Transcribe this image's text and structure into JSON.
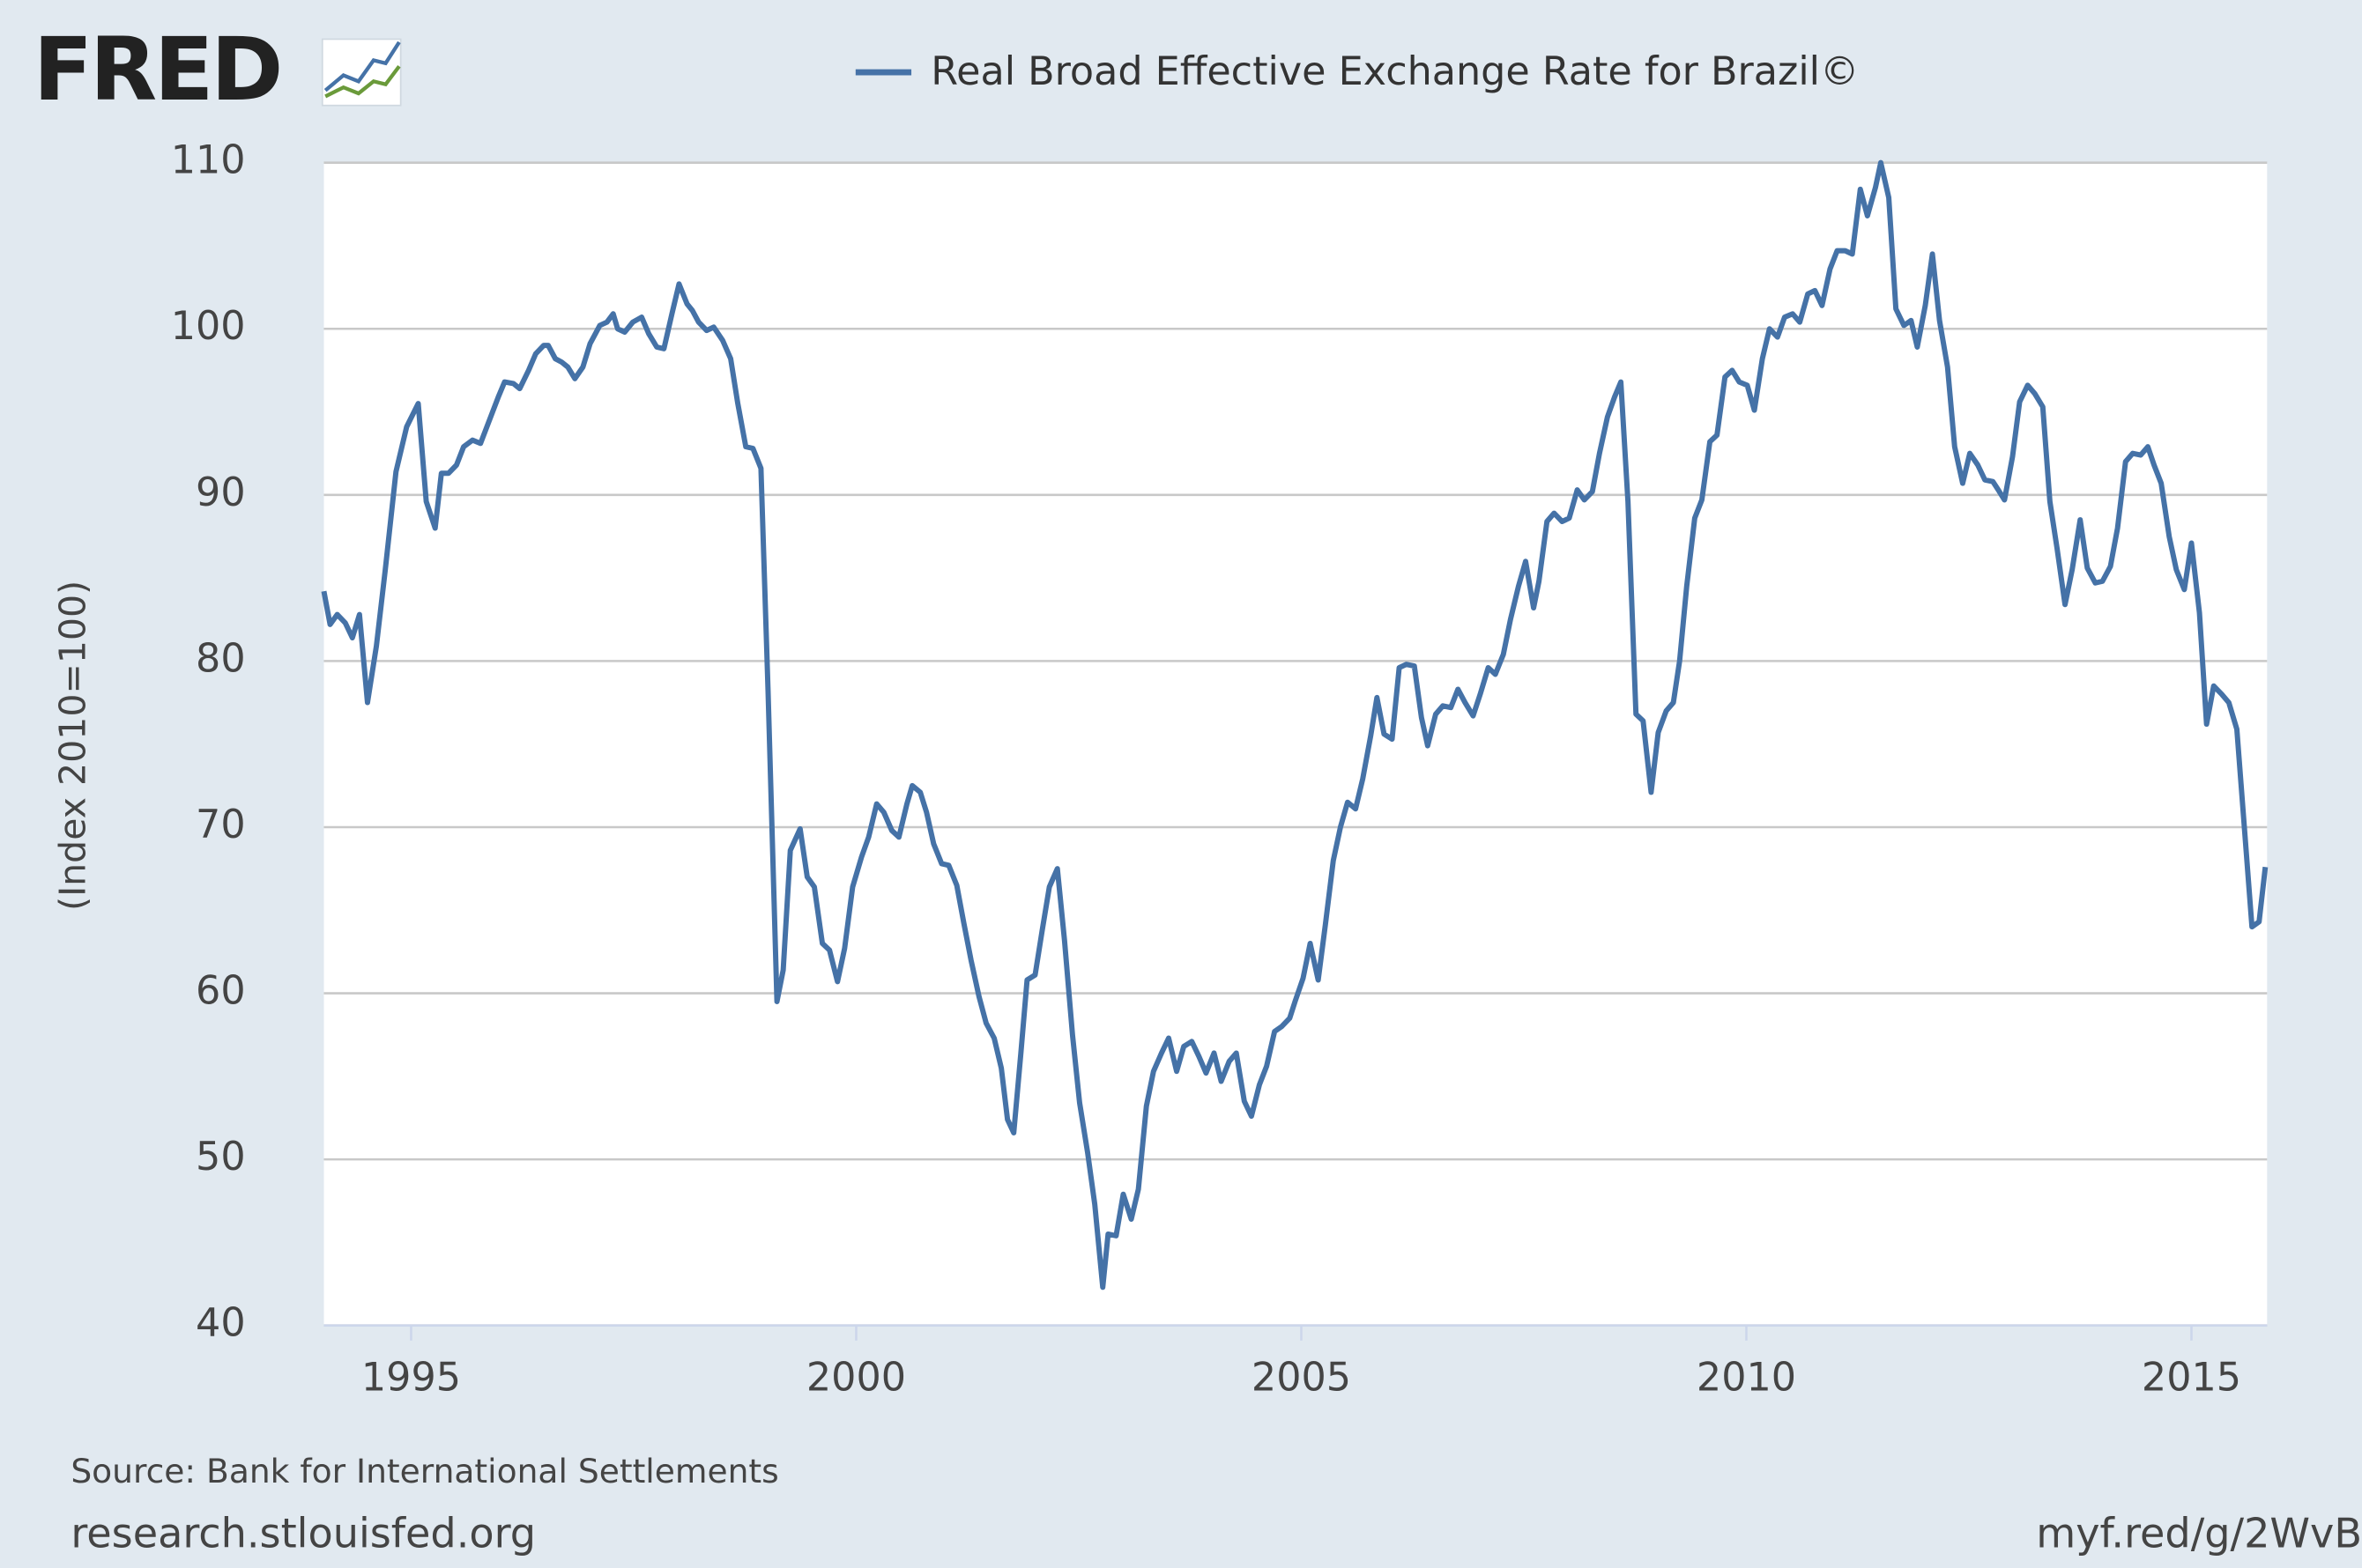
{
  "chart_data": {
    "type": "line",
    "logo": "FRED",
    "source": "Source: Bank for International Settlements",
    "site": "research.stlouisfed.org",
    "short_url": "myf.red/g/2WvB",
    "y_label": "(Index 2010=100)",
    "xlim": [
      1994.02,
      2015.85
    ],
    "xticks": [
      1995,
      2000,
      2005,
      2010,
      2015
    ],
    "ylim": [
      40,
      110
    ],
    "yticks": [
      40,
      50,
      60,
      70,
      80,
      90,
      100,
      110
    ],
    "grid": true,
    "x": [
      1994.02,
      1994.09,
      1994.17,
      1994.26,
      1994.34,
      1994.42,
      1994.51,
      1994.61,
      1994.71,
      1994.83,
      1994.95,
      1995.08,
      1995.17,
      1995.27,
      1995.34,
      1995.42,
      1995.51,
      1995.59,
      1995.69,
      1995.78,
      1995.88,
      1995.98,
      1996.05,
      1996.15,
      1996.22,
      1996.32,
      1996.4,
      1996.49,
      1996.54,
      1996.62,
      1996.69,
      1996.76,
      1996.84,
      1996.93,
      1997.01,
      1997.12,
      1997.2,
      1997.27,
      1997.32,
      1997.4,
      1997.49,
      1997.59,
      1997.67,
      1997.76,
      1997.84,
      1997.93,
      1998.01,
      1998.1,
      1998.16,
      1998.23,
      1998.32,
      1998.4,
      1998.5,
      1998.59,
      1998.67,
      1998.76,
      1998.84,
      1998.93,
      1999.01,
      1999.11,
      1999.18,
      1999.26,
      1999.37,
      1999.45,
      1999.53,
      1999.62,
      1999.7,
      1999.79,
      1999.87,
      1999.96,
      2000.06,
      2000.14,
      2000.23,
      2000.31,
      2000.4,
      2000.48,
      2000.57,
      2000.63,
      2000.72,
      2000.79,
      2000.87,
      2000.96,
      2001.04,
      2001.13,
      2001.21,
      2001.29,
      2001.38,
      2001.46,
      2001.55,
      2001.63,
      2001.7,
      2001.77,
      2001.85,
      2001.92,
      2002.01,
      2002.09,
      2002.17,
      2002.26,
      2002.34,
      2002.43,
      2002.51,
      2002.6,
      2002.68,
      2002.77,
      2002.83,
      2002.92,
      2003.0,
      2003.09,
      2003.17,
      2003.26,
      2003.34,
      2003.43,
      2003.51,
      2003.6,
      2003.68,
      2003.77,
      2003.85,
      2003.93,
      2004.02,
      2004.1,
      2004.19,
      2004.27,
      2004.36,
      2004.44,
      2004.53,
      2004.61,
      2004.7,
      2004.78,
      2004.87,
      2004.93,
      2005.02,
      2005.1,
      2005.19,
      2005.27,
      2005.36,
      2005.44,
      2005.52,
      2005.61,
      2005.69,
      2005.78,
      2005.85,
      2005.93,
      2006.02,
      2006.1,
      2006.18,
      2006.27,
      2006.35,
      2006.42,
      2006.51,
      2006.59,
      2006.68,
      2006.76,
      2006.84,
      2006.93,
      2007.01,
      2007.1,
      2007.18,
      2007.27,
      2007.35,
      2007.44,
      2007.52,
      2007.61,
      2007.67,
      2007.76,
      2007.84,
      2007.93,
      2008.01,
      2008.1,
      2008.18,
      2008.27,
      2008.35,
      2008.44,
      2008.52,
      2008.59,
      2008.67,
      2008.76,
      2008.84,
      2008.93,
      2009.01,
      2009.1,
      2009.18,
      2009.25,
      2009.33,
      2009.42,
      2009.5,
      2009.59,
      2009.67,
      2009.76,
      2009.84,
      2009.92,
      2010.01,
      2010.09,
      2010.18,
      2010.26,
      2010.35,
      2010.43,
      2010.52,
      2010.6,
      2010.69,
      2010.77,
      2010.85,
      2010.94,
      2011.02,
      2011.11,
      2011.19,
      2011.28,
      2011.36,
      2011.45,
      2011.51,
      2011.6,
      2011.68,
      2011.77,
      2011.85,
      2011.92,
      2012.01,
      2012.09,
      2012.17,
      2012.26,
      2012.34,
      2012.43,
      2012.51,
      2012.6,
      2012.68,
      2012.77,
      2012.83,
      2012.9,
      2012.99,
      2013.07,
      2013.16,
      2013.24,
      2013.33,
      2013.41,
      2013.49,
      2013.58,
      2013.66,
      2013.75,
      2013.83,
      2013.92,
      2014.0,
      2014.09,
      2014.17,
      2014.26,
      2014.34,
      2014.43,
      2014.51,
      2014.58,
      2014.66,
      2014.75,
      2014.83,
      2014.92,
      2015.0,
      2015.09,
      2015.17,
      2015.25,
      2015.34,
      2015.42,
      2015.51,
      2015.59,
      2015.68,
      2015.76,
      2015.83
    ],
    "series": [
      {
        "name": "Real Broad Effective Exchange Rate for Brazil©",
        "color": "#4572a7",
        "values": [
          84.2,
          82.2,
          82.8,
          82.3,
          81.4,
          82.8,
          77.5,
          80.9,
          85.5,
          91.4,
          94.1,
          95.5,
          89.6,
          88,
          91.3,
          91.3,
          91.8,
          92.9,
          93.3,
          93.1,
          94.5,
          95.9,
          96.8,
          96.7,
          96.4,
          97.5,
          98.5,
          99,
          99,
          98.2,
          98,
          97.7,
          97,
          97.7,
          99.1,
          100.2,
          100.4,
          100.9,
          100,
          99.8,
          100.4,
          100.7,
          99.7,
          98.9,
          98.8,
          100.9,
          102.7,
          101.5,
          101.1,
          100.4,
          99.9,
          100.1,
          99.3,
          98.2,
          95.5,
          92.9,
          92.8,
          91.6,
          78.2,
          59.5,
          61.4,
          68.6,
          69.9,
          67,
          66.4,
          63,
          62.6,
          60.7,
          62.7,
          66.4,
          68.2,
          69.4,
          71.4,
          70.9,
          69.8,
          69.4,
          71.4,
          72.5,
          72.1,
          70.9,
          69,
          67.8,
          67.7,
          66.5,
          64.2,
          62,
          59.8,
          58.2,
          57.3,
          55.5,
          52.4,
          51.6,
          56.4,
          60.8,
          61.1,
          63.8,
          66.4,
          67.5,
          63.2,
          57.5,
          53.4,
          50.4,
          47.3,
          42.3,
          45.5,
          45.4,
          47.9,
          46.4,
          48.2,
          53.2,
          55.3,
          56.4,
          57.3,
          55.3,
          56.8,
          57.1,
          56.2,
          55.2,
          56.4,
          54.7,
          55.9,
          56.4,
          53.5,
          52.6,
          54.5,
          55.6,
          57.7,
          58,
          58.5,
          59.5,
          60.9,
          63,
          60.8,
          64.1,
          68,
          70,
          71.5,
          71.1,
          72.9,
          75.5,
          77.8,
          75.6,
          75.3,
          79.6,
          79.8,
          79.7,
          76.6,
          74.9,
          76.8,
          77.3,
          77.2,
          78.3,
          77.5,
          76.7,
          78,
          79.6,
          79.2,
          80.4,
          82.5,
          84.5,
          86,
          83.2,
          84.8,
          88.4,
          88.9,
          88.4,
          88.6,
          90.3,
          89.7,
          90.2,
          92.5,
          94.7,
          95.9,
          96.8,
          89.6,
          76.8,
          76.4,
          72.1,
          75.7,
          77,
          77.5,
          80,
          84.5,
          88.6,
          89.7,
          93.2,
          93.6,
          97.1,
          97.5,
          96.8,
          96.6,
          95.1,
          98.2,
          100,
          99.5,
          100.7,
          100.9,
          100.4,
          102.1,
          102.3,
          101.4,
          103.6,
          104.7,
          104.7,
          104.5,
          108.4,
          106.8,
          108.5,
          110,
          107.9,
          101.2,
          100.2,
          100.5,
          98.9,
          101.4,
          104.5,
          100.5,
          97.7,
          92.9,
          90.7,
          92.5,
          91.8,
          90.9,
          90.8,
          90.3,
          89.7,
          92.3,
          95.6,
          96.6,
          96.1,
          95.3,
          89.6,
          86.8,
          83.4,
          85.5,
          88.5,
          85.6,
          84.7,
          84.8,
          85.7,
          88,
          92,
          92.5,
          92.4,
          92.9,
          91.8,
          90.7,
          87.5,
          85.5,
          84.3,
          87.1,
          82.9,
          76.2,
          78.5,
          78,
          77.5,
          75.9,
          70.3,
          64,
          64.3,
          67.6
        ]
      }
    ]
  }
}
